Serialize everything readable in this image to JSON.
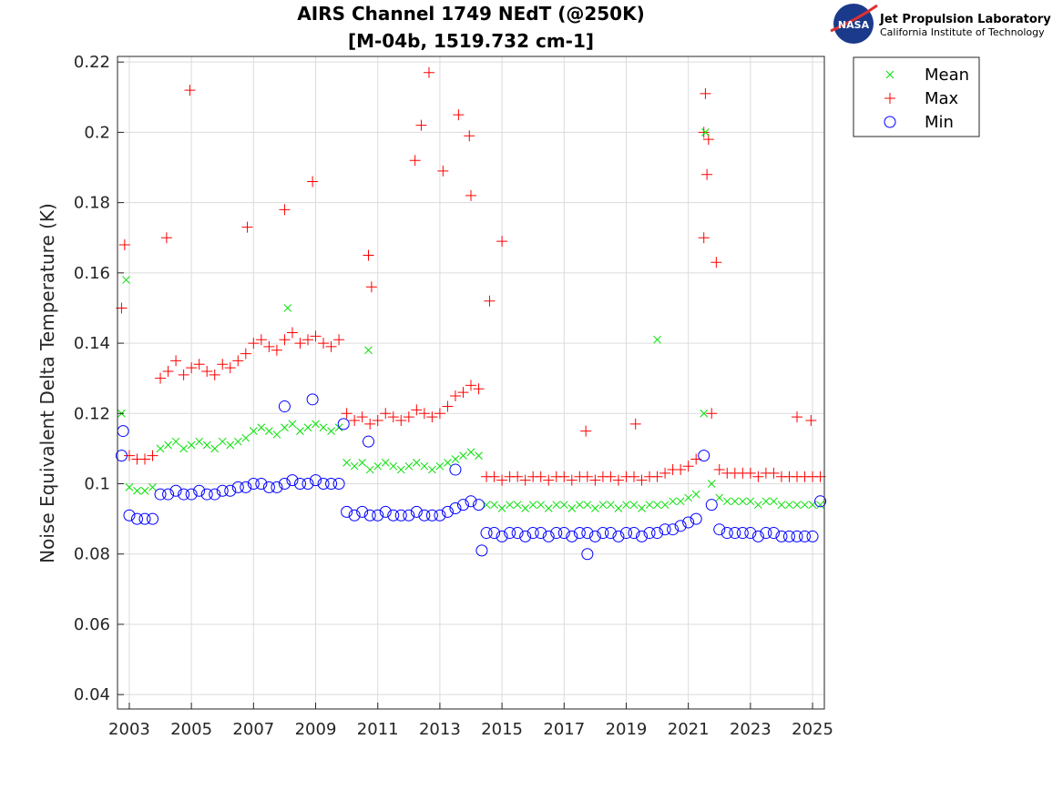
{
  "logo": {
    "org": "Jet Propulsion Laboratory",
    "sub": "California Institute of Technology",
    "badge": "NASA"
  },
  "chart_data": {
    "type": "scatter",
    "title": "AIRS Channel 1749 NEdT (@250K)",
    "subtitle": "[M-04b, 1519.732 cm-1]",
    "xlabel": "",
    "ylabel": "Noise Equivalent Delta Temperature (K)",
    "xlim": [
      2002.62,
      2025.38
    ],
    "ylim": [
      0.0359,
      0.2216
    ],
    "xticks": [
      2003,
      2005,
      2007,
      2009,
      2011,
      2013,
      2015,
      2017,
      2019,
      2021,
      2023,
      2025
    ],
    "yticks": [
      0.04,
      0.06,
      0.08,
      0.1,
      0.12,
      0.14,
      0.16,
      0.18,
      0.2,
      0.22
    ],
    "ytick_labels": [
      "0.04",
      "0.06",
      "0.08",
      "0.1",
      "0.12",
      "0.14",
      "0.16",
      "0.18",
      "0.2",
      "0.22"
    ],
    "grid": true,
    "legend_placement": "outside-top-right",
    "x_start": 2002.75,
    "x_step": 0.25,
    "series": [
      {
        "name": "Mean",
        "marker": "x",
        "color": "#00e000",
        "values": [
          0.12,
          0.099,
          0.098,
          0.098,
          0.099,
          0.11,
          0.111,
          0.112,
          0.11,
          0.111,
          0.112,
          0.111,
          0.11,
          0.112,
          0.111,
          0.112,
          0.113,
          0.115,
          0.116,
          0.115,
          0.114,
          0.116,
          0.117,
          0.115,
          0.116,
          0.117,
          0.116,
          0.115,
          0.116,
          0.106,
          0.105,
          0.106,
          0.104,
          0.105,
          0.106,
          0.105,
          0.104,
          0.105,
          0.106,
          0.105,
          0.104,
          0.105,
          0.106,
          0.107,
          0.108,
          0.109,
          0.108,
          0.094,
          0.094,
          0.093,
          0.094,
          0.094,
          0.093,
          0.094,
          0.094,
          0.093,
          0.094,
          0.094,
          0.093,
          0.094,
          0.094,
          0.093,
          0.094,
          0.094,
          0.093,
          0.094,
          0.094,
          0.093,
          0.094,
          0.094,
          0.094,
          0.095,
          0.095,
          0.096,
          0.097,
          0.12,
          0.1,
          0.096,
          0.095,
          0.095,
          0.095,
          0.095,
          0.094,
          0.095,
          0.095,
          0.094,
          0.094,
          0.094,
          0.094,
          0.094,
          0.094
        ],
        "outliers": [
          [
            2021.55,
            0.2
          ],
          [
            2020.0,
            0.141
          ],
          [
            2010.7,
            0.138
          ],
          [
            2002.9,
            0.158
          ],
          [
            2008.1,
            0.15
          ]
        ]
      },
      {
        "name": "Max",
        "marker": "+",
        "color": "#ff0000",
        "values": [
          0.15,
          0.108,
          0.107,
          0.107,
          0.108,
          0.13,
          0.132,
          0.135,
          0.131,
          0.133,
          0.134,
          0.132,
          0.131,
          0.134,
          0.133,
          0.135,
          0.137,
          0.14,
          0.141,
          0.139,
          0.138,
          0.141,
          0.143,
          0.14,
          0.141,
          0.142,
          0.14,
          0.139,
          0.141,
          0.12,
          0.118,
          0.119,
          0.117,
          0.118,
          0.12,
          0.119,
          0.118,
          0.119,
          0.121,
          0.12,
          0.119,
          0.12,
          0.122,
          0.125,
          0.126,
          0.128,
          0.127,
          0.102,
          0.102,
          0.101,
          0.102,
          0.102,
          0.101,
          0.102,
          0.102,
          0.101,
          0.102,
          0.102,
          0.101,
          0.102,
          0.102,
          0.101,
          0.102,
          0.102,
          0.101,
          0.102,
          0.102,
          0.101,
          0.102,
          0.102,
          0.103,
          0.104,
          0.104,
          0.105,
          0.107,
          0.2,
          0.12,
          0.104,
          0.103,
          0.103,
          0.103,
          0.103,
          0.102,
          0.103,
          0.103,
          0.102,
          0.102,
          0.102,
          0.102,
          0.102,
          0.102
        ],
        "outliers": [
          [
            2004.95,
            0.212
          ],
          [
            2012.65,
            0.217
          ],
          [
            2013.6,
            0.205
          ],
          [
            2012.4,
            0.202
          ],
          [
            2021.55,
            0.211
          ],
          [
            2008.9,
            0.186
          ],
          [
            2012.2,
            0.192
          ],
          [
            2013.1,
            0.189
          ],
          [
            2013.95,
            0.199
          ],
          [
            2014.0,
            0.182
          ],
          [
            2008.0,
            0.178
          ],
          [
            2004.2,
            0.17
          ],
          [
            2006.8,
            0.173
          ],
          [
            2010.7,
            0.165
          ],
          [
            2015.0,
            0.169
          ],
          [
            2017.7,
            0.115
          ],
          [
            2019.3,
            0.117
          ],
          [
            2024.5,
            0.119
          ],
          [
            2002.85,
            0.168
          ],
          [
            2021.6,
            0.188
          ],
          [
            2021.9,
            0.163
          ],
          [
            2014.6,
            0.152
          ],
          [
            2010.8,
            0.156
          ],
          [
            2021.65,
            0.198
          ],
          [
            2021.5,
            0.17
          ],
          [
            2024.95,
            0.118
          ]
        ]
      },
      {
        "name": "Min",
        "marker": "o",
        "color": "#0000ff",
        "values": [
          0.108,
          0.091,
          0.09,
          0.09,
          0.09,
          0.097,
          0.097,
          0.098,
          0.097,
          0.097,
          0.098,
          0.097,
          0.097,
          0.098,
          0.098,
          0.099,
          0.099,
          0.1,
          0.1,
          0.099,
          0.099,
          0.1,
          0.101,
          0.1,
          0.1,
          0.101,
          0.1,
          0.1,
          0.1,
          0.092,
          0.091,
          0.092,
          0.091,
          0.091,
          0.092,
          0.091,
          0.091,
          0.091,
          0.092,
          0.091,
          0.091,
          0.091,
          0.092,
          0.093,
          0.094,
          0.095,
          0.094,
          0.086,
          0.086,
          0.085,
          0.086,
          0.086,
          0.085,
          0.086,
          0.086,
          0.085,
          0.086,
          0.086,
          0.085,
          0.086,
          0.086,
          0.085,
          0.086,
          0.086,
          0.085,
          0.086,
          0.086,
          0.085,
          0.086,
          0.086,
          0.087,
          0.087,
          0.088,
          0.089,
          0.09,
          0.108,
          0.094,
          0.087,
          0.086,
          0.086,
          0.086,
          0.086,
          0.085,
          0.086,
          0.086,
          0.085,
          0.085,
          0.085,
          0.085,
          0.085,
          0.095
        ],
        "outliers": [
          [
            2008.0,
            0.122
          ],
          [
            2008.9,
            0.124
          ],
          [
            2009.9,
            0.117
          ],
          [
            2010.7,
            0.112
          ],
          [
            2017.75,
            0.08
          ],
          [
            2014.35,
            0.081
          ],
          [
            2002.8,
            0.115
          ],
          [
            2013.5,
            0.104
          ]
        ]
      }
    ]
  }
}
